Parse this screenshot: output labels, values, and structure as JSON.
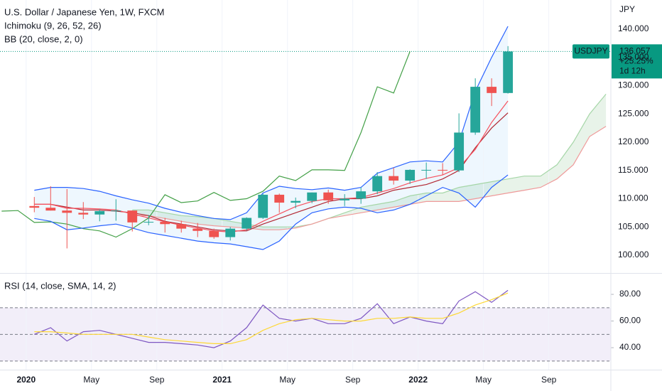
{
  "chart_data": [
    {
      "type": "candlestick",
      "title": "U.S. Dollar / Japanese Yen, 1W, FXCM",
      "unit": "JPY",
      "x": [
        0.5,
        1.5,
        2.5,
        3.5,
        4.5,
        5.5,
        6.5,
        7.5,
        8.5,
        9.5,
        10.5,
        11.5,
        12.5,
        13.5,
        14.5,
        15.5,
        16.5,
        17.5,
        18.5,
        19.5,
        20.5,
        21.5,
        22.5,
        23.5,
        24.5,
        25.5,
        26.5,
        27.5,
        28.5,
        29.5
      ],
      "open": [
        108.7,
        108.4,
        107.9,
        107.5,
        107.2,
        107.8,
        107.9,
        105.8,
        105.9,
        105.5,
        104.7,
        104.3,
        103.2,
        104.7,
        106.6,
        110.7,
        109.3,
        109.6,
        111.1,
        109.7,
        110.0,
        111.3,
        114.0,
        113.2,
        115.1,
        115.1,
        115.0,
        121.7,
        129.8,
        128.7
      ],
      "high": [
        110.3,
        112.2,
        111.7,
        109.4,
        108.1,
        109.9,
        107.9,
        107.1,
        106.6,
        106.1,
        105.7,
        104.7,
        105.0,
        106.7,
        110.9,
        110.9,
        110.2,
        111.1,
        111.6,
        110.8,
        112.0,
        114.7,
        115.5,
        115.2,
        116.4,
        116.3,
        125.1,
        131.3,
        131.3,
        137.0
      ],
      "low": [
        107.6,
        107.9,
        101.2,
        106.4,
        106.0,
        106.1,
        104.2,
        105.3,
        104.0,
        104.0,
        103.2,
        102.9,
        102.6,
        104.4,
        106.4,
        107.5,
        108.3,
        109.2,
        109.1,
        108.7,
        109.1,
        110.8,
        112.5,
        112.6,
        113.5,
        114.2,
        114.7,
        121.3,
        126.4,
        128.6
      ],
      "close": [
        108.4,
        107.9,
        107.5,
        107.2,
        107.8,
        107.9,
        105.8,
        105.9,
        105.5,
        104.7,
        104.3,
        103.2,
        104.7,
        106.6,
        110.7,
        109.3,
        109.6,
        111.1,
        109.7,
        110.0,
        111.3,
        114.0,
        113.2,
        115.1,
        115.1,
        115.0,
        121.7,
        129.8,
        128.7,
        136.057
      ],
      "up_color": "#26a69a",
      "down_color": "#ef5350",
      "xlim": [
        -1.6,
        35.8
      ],
      "ylim": [
        96.85,
        145.16
      ],
      "yticks": [
        {
          "value": 100,
          "label": "100.000"
        },
        {
          "value": 105,
          "label": "105.000"
        },
        {
          "value": 110,
          "label": "110.000"
        },
        {
          "value": 115,
          "label": "115.000"
        },
        {
          "value": 120,
          "label": "120.000"
        },
        {
          "value": 125,
          "label": "125.000"
        },
        {
          "value": 130,
          "label": "130.000"
        },
        {
          "value": 135,
          "label": "135.000"
        },
        {
          "value": 140,
          "label": "140.000"
        }
      ],
      "xticks": [
        {
          "value": 0,
          "label": "2020"
        },
        {
          "value": 4,
          "label": "May"
        },
        {
          "value": 8,
          "label": "Sep"
        },
        {
          "value": 12,
          "label": "2021"
        },
        {
          "value": 16,
          "label": "May"
        },
        {
          "value": 20,
          "label": "Sep"
        },
        {
          "value": 24,
          "label": "2022"
        },
        {
          "value": 28,
          "label": "May"
        },
        {
          "value": 32,
          "label": "Sep"
        }
      ],
      "last_price": {
        "symbol": "USDJPY",
        "value": 136.057,
        "change": "+25.25%",
        "countdown": "1d 12h",
        "color": "#089981"
      },
      "overlays": [
        {
          "label": "Ichimoku (9, 26, 52, 26)",
          "fill": [
            "rgba(67,160,71,0.12)",
            "rgba(244,67,54,0.12)"
          ],
          "lines": [
            {
              "color": "#a5d6a7",
              "x": [
                6.5,
                7.5,
                8.5,
                9.5,
                10.5,
                11.5,
                12.5,
                13.5,
                14.5,
                15.5,
                16.5,
                17.5,
                18.5,
                19.5,
                20.5,
                21.5,
                22.5,
                23.5,
                24.5,
                25.5,
                26.5,
                27.5,
                28.5,
                29.5,
                30.5,
                31.5,
                32.5,
                33.5,
                34.5,
                35.5
              ],
              "values": [
                108,
                108,
                107.5,
                107,
                106.8,
                106.5,
                106,
                105.5,
                105,
                105,
                105,
                105.5,
                106.5,
                107.5,
                108.5,
                109,
                109.5,
                110.5,
                111,
                111,
                112,
                112.5,
                113,
                113.5,
                114,
                114,
                116,
                120,
                125,
                128.5
              ]
            },
            {
              "color": "#ef9a9a",
              "x": [
                6.5,
                7.5,
                8.5,
                9.5,
                10.5,
                11.5,
                12.5,
                13.5,
                14.5,
                15.5,
                16.5,
                17.5,
                18.5,
                19.5,
                20.5,
                21.5,
                22.5,
                23.5,
                24.5,
                25.5,
                26.5,
                27.5,
                28.5,
                29.5,
                30.5,
                31.5,
                32.5,
                33.5,
                34.5,
                35.5
              ],
              "values": [
                107,
                107,
                106.5,
                106,
                105.5,
                105.2,
                105,
                104.8,
                104.5,
                104.5,
                104.8,
                105.5,
                106.5,
                107,
                107.5,
                108,
                108.5,
                109,
                109.5,
                109.5,
                109.5,
                110,
                110.5,
                111,
                111.5,
                112,
                113.5,
                116,
                121,
                122.8
              ]
            },
            {
              "color": "#b22833",
              "values": [
                109,
                109,
                108.5,
                108,
                108,
                107.8,
                107.5,
                107,
                106,
                105.5,
                105,
                104.5,
                104.3,
                104.3,
                105.5,
                106.5,
                107.5,
                108.5,
                109.5,
                110,
                110,
                110.5,
                111.5,
                112,
                112.5,
                113.5,
                115,
                119,
                122.5,
                125.2
              ]
            },
            {
              "color": "#43a047",
              "x": [
                -1.5,
                -0.5,
                0.5,
                1.5,
                2.5,
                3.5,
                4.5,
                5.5,
                6.5,
                7.5,
                8.5,
                9.5,
                10.5,
                11.5,
                12.5,
                13.5,
                14.5,
                15.5,
                16.5,
                17.5,
                18.5,
                19.5,
                20.5,
                21.5,
                22.5,
                23.5
              ],
              "values": [
                107.8,
                107.9,
                105.8,
                105.9,
                105.5,
                104.7,
                104.3,
                103.2,
                104.7,
                106.6,
                110.7,
                109.3,
                109.6,
                111.1,
                109.7,
                110.0,
                111.3,
                114.0,
                113.2,
                115.1,
                115.1,
                115.0,
                121.7,
                129.8,
                128.7,
                136.057
              ]
            }
          ]
        },
        {
          "label": "BB (20, close, 2, 0)",
          "fill": [
            "rgba(33,150,243,0.08)"
          ],
          "lines": [
            {
              "color": "#2962ff",
              "values": [
                111.5,
                112,
                112,
                111.8,
                111.3,
                110.5,
                109.8,
                109.2,
                108.3,
                107.6,
                107.0,
                106.5,
                106.3,
                107.5,
                111,
                112.2,
                111.8,
                111.6,
                111.9,
                111.5,
                112,
                114.5,
                115.5,
                116.5,
                116.7,
                116.5,
                120,
                129,
                135,
                140.5
              ]
            },
            {
              "color": "#2962ff",
              "values": [
                106.5,
                106,
                104.5,
                104.8,
                105.2,
                105.5,
                104.8,
                104,
                103.5,
                103,
                102.5,
                102.2,
                102,
                101.5,
                101,
                102.5,
                105.5,
                107.5,
                108.2,
                108.5,
                108.3,
                107.5,
                108,
                109,
                110.5,
                112,
                111,
                108.5,
                112,
                114.2
              ]
            },
            {
              "color": "#f7525f",
              "values": [
                109,
                109,
                108.3,
                108.3,
                108.2,
                108,
                107.3,
                106.6,
                105.9,
                105.3,
                104.8,
                104.3,
                104.1,
                104.5,
                106,
                107.3,
                108.6,
                109.5,
                110,
                110,
                110.2,
                111,
                111.8,
                112.8,
                113.6,
                114.2,
                115.5,
                118.7,
                123.5,
                127.3
              ]
            }
          ]
        }
      ]
    },
    {
      "type": "line",
      "title": "RSI (14, close, SMA, 14, 2)",
      "x": [
        0.5,
        1.5,
        2.5,
        3.5,
        4.5,
        5.5,
        6.5,
        7.5,
        8.5,
        9.5,
        10.5,
        11.5,
        12.5,
        13.5,
        14.5,
        15.5,
        16.5,
        17.5,
        18.5,
        19.5,
        20.5,
        21.5,
        22.5,
        23.5,
        24.5,
        25.5,
        26.5,
        27.5,
        28.5,
        29.5
      ],
      "series": [
        {
          "color": "#7e57c2",
          "values": [
            50,
            55,
            45,
            52,
            53,
            50,
            47,
            44,
            44,
            43,
            42,
            40,
            45,
            55,
            72,
            62,
            60,
            62,
            58,
            58,
            62,
            73,
            58,
            63,
            60,
            58,
            75,
            82,
            74,
            83
          ]
        },
        {
          "color": "#fdd835",
          "values": [
            52,
            52,
            51,
            50,
            50,
            50,
            50,
            48,
            46,
            45,
            44,
            43,
            43,
            46,
            53,
            58,
            61,
            62,
            61,
            60,
            60,
            62,
            62,
            63,
            62,
            62,
            66,
            72,
            76,
            81
          ]
        }
      ],
      "xlim": [
        -1.6,
        35.8
      ],
      "ylim": [
        23.5,
        95.5
      ],
      "yticks": [
        {
          "value": 40,
          "label": "40.00"
        },
        {
          "value": 60,
          "label": "60.00"
        },
        {
          "value": 80,
          "label": "80.00"
        }
      ],
      "bands": [
        70,
        50,
        30
      ],
      "band_fill": "rgba(126,87,194,0.1)"
    }
  ]
}
